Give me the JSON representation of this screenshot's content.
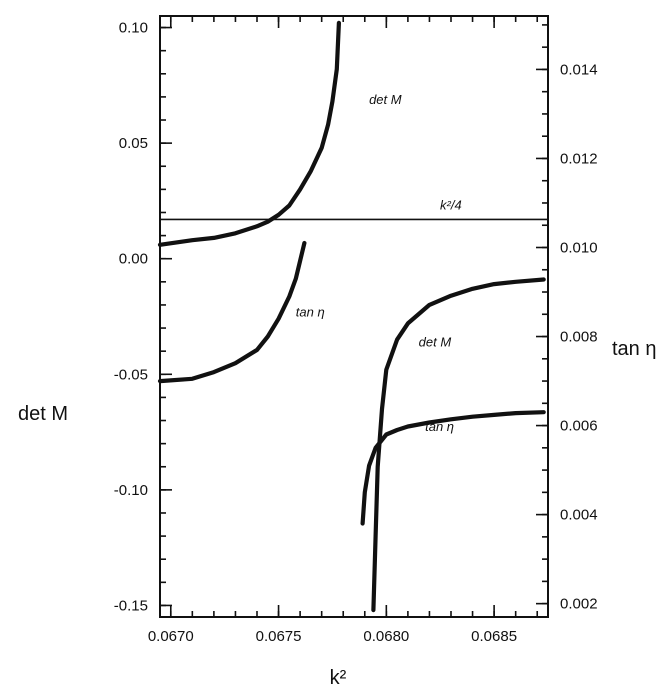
{
  "chart_data": {
    "type": "line",
    "xlabel": "k²",
    "ylabel_left": "det M",
    "ylabel_right": "tan η",
    "xlim": [
      0.06695,
      0.06875
    ],
    "ylim_left": [
      -0.155,
      0.105
    ],
    "ylim_right": [
      0.0017,
      0.0152
    ],
    "grid": false,
    "x_ticks": [
      {
        "value": 0.067,
        "label": "0.0670"
      },
      {
        "value": 0.0675,
        "label": "0.0675"
      },
      {
        "value": 0.068,
        "label": "0.0680"
      },
      {
        "value": 0.0685,
        "label": "0.0685"
      }
    ],
    "y_left_ticks": [
      {
        "value": 0.1,
        "label": "0.10"
      },
      {
        "value": 0.05,
        "label": "0.05"
      },
      {
        "value": 0.0,
        "label": "0.00"
      },
      {
        "value": -0.05,
        "label": "-0.05"
      },
      {
        "value": -0.1,
        "label": "-0.10"
      },
      {
        "value": -0.15,
        "label": "-0.15"
      }
    ],
    "y_right_ticks": [
      {
        "value": 0.014,
        "label": "0.014"
      },
      {
        "value": 0.012,
        "label": "0.012"
      },
      {
        "value": 0.01,
        "label": "0.010"
      },
      {
        "value": 0.008,
        "label": "0.008"
      },
      {
        "value": 0.006,
        "label": "0.006"
      },
      {
        "value": 0.004,
        "label": "0.004"
      },
      {
        "value": 0.002,
        "label": "0.002"
      }
    ],
    "series": [
      {
        "key": "det_m_left",
        "axis": "left",
        "x": [
          0.06695,
          0.0671,
          0.0672,
          0.0673,
          0.0674,
          0.06745,
          0.0675,
          0.06755,
          0.0676,
          0.06765,
          0.0677,
          0.06773,
          0.06775,
          0.06777,
          0.06778
        ],
        "y": [
          0.006,
          0.008,
          0.009,
          0.011,
          0.014,
          0.016,
          0.019,
          0.023,
          0.03,
          0.038,
          0.048,
          0.058,
          0.068,
          0.082,
          0.102
        ]
      },
      {
        "key": "tan_eta_left",
        "axis": "right",
        "x": [
          0.06695,
          0.0671,
          0.0672,
          0.0673,
          0.0674,
          0.06745,
          0.0675,
          0.06755,
          0.06758,
          0.0676,
          0.06762
        ],
        "y": [
          0.007,
          0.00705,
          0.0072,
          0.0074,
          0.0077,
          0.008,
          0.0084,
          0.0089,
          0.0093,
          0.0097,
          0.0101
        ]
      },
      {
        "key": "det_m_right",
        "axis": "left",
        "x": [
          0.06794,
          0.06795,
          0.06796,
          0.06798,
          0.068,
          0.06805,
          0.0681,
          0.0682,
          0.0683,
          0.0684,
          0.0685,
          0.0686,
          0.06873
        ],
        "y": [
          -0.152,
          -0.12,
          -0.09,
          -0.065,
          -0.048,
          -0.035,
          -0.028,
          -0.02,
          -0.016,
          -0.013,
          -0.011,
          -0.01,
          -0.009
        ]
      },
      {
        "key": "tan_eta_right",
        "axis": "right",
        "x": [
          0.06789,
          0.0679,
          0.06792,
          0.06795,
          0.068,
          0.06805,
          0.0681,
          0.0682,
          0.0683,
          0.0684,
          0.0685,
          0.0686,
          0.06873
        ],
        "y": [
          0.0038,
          0.0045,
          0.0051,
          0.0055,
          0.0058,
          0.0059,
          0.00598,
          0.00607,
          0.00614,
          0.0062,
          0.00624,
          0.00628,
          0.0063
        ]
      }
    ],
    "hline": {
      "axis": "left",
      "y": 0.017,
      "label": "k²/4"
    },
    "annotations": [
      {
        "text": "det M",
        "x": 0.06792,
        "y": 0.067
      },
      {
        "text": "tan η",
        "x": 0.06758,
        "y": -0.025
      },
      {
        "text": "det M",
        "x": 0.06815,
        "y": -0.038
      },
      {
        "text": "tan η",
        "x": 0.06818,
        "y": -0.0745
      }
    ]
  }
}
